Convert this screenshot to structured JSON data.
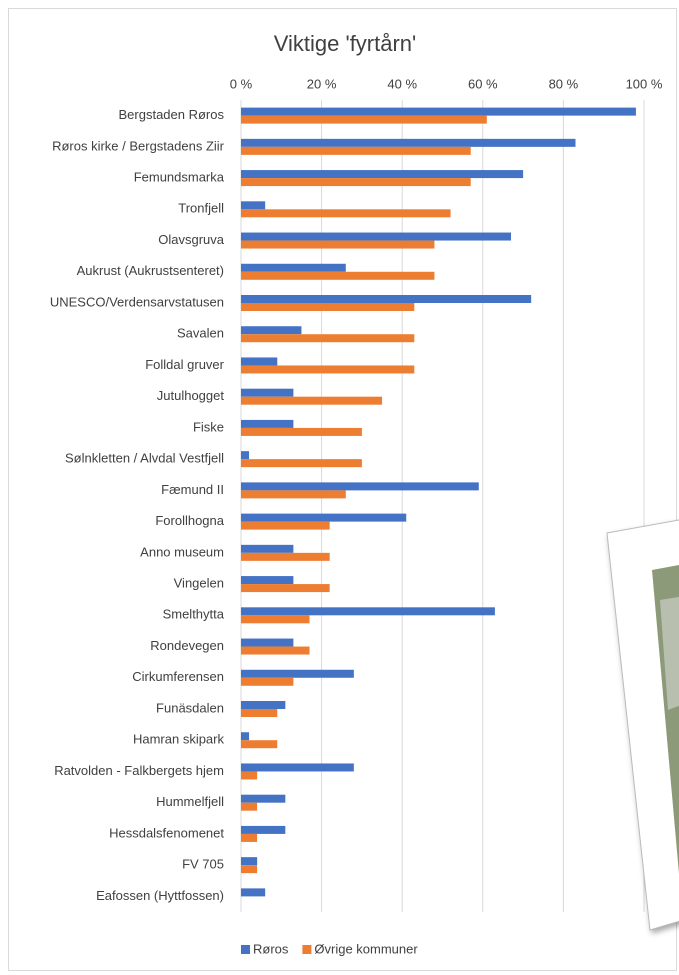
{
  "chart_data": {
    "type": "hbar",
    "title": "Viktige 'fyrtårn'",
    "categories": [
      "Bergstaden Røros",
      "Røros kirke / Bergstadens Ziir",
      "Femundsmarka",
      "Tronfjell",
      "Olavsgruva",
      "Aukrust (Aukrustsenteret)",
      "UNESCO/Verdensarvstatusen",
      "Savalen",
      "Folldal gruver",
      "Jutulhogget",
      "Fiske",
      "Sølnkletten / Alvdal Vestfjell",
      "Fæmund II",
      "Forollhogna",
      "Anno museum",
      "Vingelen",
      "Smelthytta",
      "Rondevegen",
      "Cirkumferensen",
      "Funäsdalen",
      "Hamran skipark",
      "Ratvolden - Falkbergets hjem",
      "Hummelfjell",
      "Hessdalsfenomenet",
      "FV 705",
      "Eafossen (Hyttfossen)"
    ],
    "series": [
      {
        "name": "Røros",
        "color": "#4472c4",
        "values": [
          98,
          83,
          70,
          6,
          67,
          26,
          72,
          15,
          9,
          13,
          13,
          2,
          59,
          41,
          13,
          13,
          63,
          13,
          28,
          11,
          2,
          28,
          11,
          11,
          4,
          6
        ]
      },
      {
        "name": "Øvrige kommuner",
        "color": "#ed7d31",
        "values": [
          61,
          57,
          57,
          52,
          48,
          48,
          43,
          43,
          43,
          35,
          30,
          30,
          26,
          22,
          22,
          22,
          17,
          17,
          13,
          9,
          9,
          4,
          4,
          4,
          4,
          0
        ]
      }
    ],
    "xlim": [
      0,
      100
    ],
    "xticks": [
      {
        "value": 0,
        "label": "0 %"
      },
      {
        "value": 20,
        "label": "20 %"
      },
      {
        "value": 40,
        "label": "40 %"
      },
      {
        "value": 60,
        "label": "60 %"
      },
      {
        "value": 80,
        "label": "80 %"
      },
      {
        "value": 100,
        "label": "100 %"
      }
    ],
    "grid": true,
    "legend": "bottom"
  }
}
